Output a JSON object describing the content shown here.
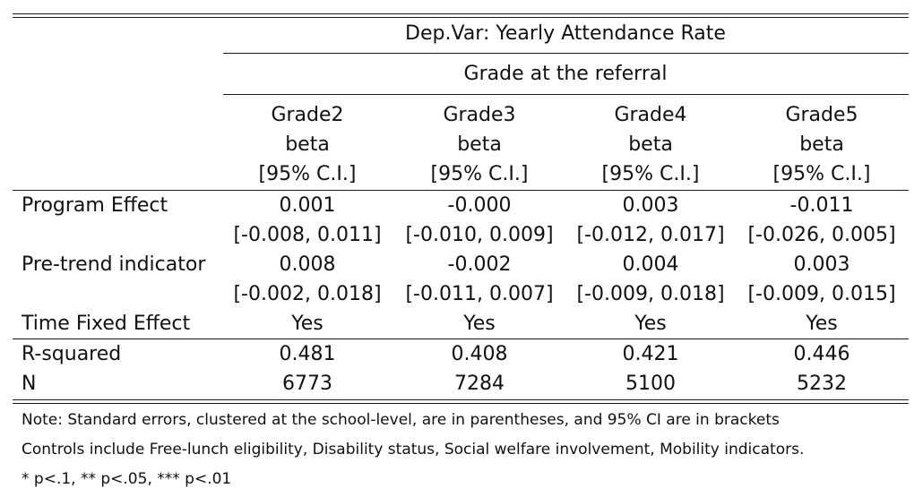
{
  "table": {
    "dep_var": "Dep.Var: Yearly Attendance Rate",
    "group_header": "Grade at the referral",
    "columns": [
      {
        "name": "Grade2",
        "sub1": "beta",
        "sub2": "[95% C.I.]"
      },
      {
        "name": "Grade3",
        "sub1": "beta",
        "sub2": "[95% C.I.]"
      },
      {
        "name": "Grade4",
        "sub1": "beta",
        "sub2": "[95% C.I.]"
      },
      {
        "name": "Grade5",
        "sub1": "beta",
        "sub2": "[95% C.I.]"
      }
    ],
    "rows": {
      "program_effect": {
        "label": "Program Effect",
        "beta": [
          "0.001",
          "-0.000",
          "0.003",
          "-0.011"
        ],
        "ci": [
          "[-0.008, 0.011]",
          "[-0.010, 0.009]",
          "[-0.012, 0.017]",
          "[-0.026, 0.005]"
        ]
      },
      "pretrend": {
        "label": "Pre-trend indicator",
        "beta": [
          "0.008",
          "-0.002",
          "0.004",
          "0.003"
        ],
        "ci": [
          "[-0.002, 0.018]",
          "[-0.011, 0.007]",
          "[-0.009, 0.018]",
          "[-0.009, 0.015]"
        ]
      },
      "time_fe": {
        "label": "Time Fixed Effect",
        "values": [
          "Yes",
          "Yes",
          "Yes",
          "Yes"
        ]
      },
      "r_squared": {
        "label": "R-squared",
        "values": [
          "0.481",
          "0.408",
          "0.421",
          "0.446"
        ]
      },
      "n": {
        "label": "N",
        "values": [
          "6773",
          "7284",
          "5100",
          "5232"
        ]
      }
    },
    "notes": [
      "Note: Standard errors, clustered at the school-level, are in parentheses, and 95% CI are in brackets",
      "Controls include Free-lunch eligibility, Disability status, Social welfare involvement, Mobility indicators.",
      "* p<.1, ** p<.05, *** p<.01"
    ]
  }
}
